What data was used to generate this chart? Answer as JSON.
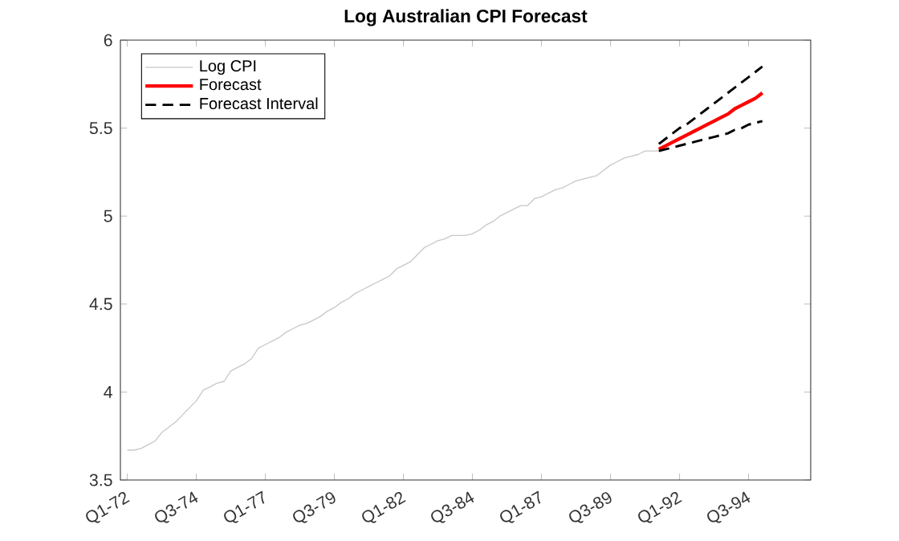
{
  "chart_data": {
    "type": "line",
    "title": "Log Australian CPI Forecast",
    "ylim": [
      3.5,
      6
    ],
    "categories": [
      "Q1-72",
      null,
      null,
      null,
      null,
      null,
      null,
      null,
      null,
      null,
      "Q3-74",
      null,
      null,
      null,
      null,
      null,
      null,
      null,
      null,
      null,
      "Q1-77",
      null,
      null,
      null,
      null,
      null,
      null,
      null,
      null,
      null,
      "Q3-79",
      null,
      null,
      null,
      null,
      null,
      null,
      null,
      null,
      null,
      "Q1-82",
      null,
      null,
      null,
      null,
      null,
      null,
      null,
      null,
      null,
      "Q3-84",
      null,
      null,
      null,
      null,
      null,
      null,
      null,
      null,
      null,
      "Q1-87",
      null,
      null,
      null,
      null,
      null,
      null,
      null,
      null,
      null,
      "Q3-89",
      null,
      null,
      null,
      null,
      null,
      null,
      null,
      null,
      null,
      "Q1-92",
      null,
      null,
      null,
      null,
      null,
      null,
      null,
      null,
      null,
      "Q3-94",
      null,
      null
    ],
    "yticks": [
      3.5,
      4,
      4.5,
      5,
      5.5,
      6
    ],
    "legend": "top left",
    "grid": false,
    "marker": "none",
    "series": [
      {
        "name": "Log CPI",
        "color": "#c8c8c8",
        "line_style": "solid",
        "values": [
          3.67,
          3.67,
          3.68,
          3.7,
          3.72,
          3.77,
          3.8,
          3.83,
          3.87,
          3.91,
          3.95,
          4.01,
          4.03,
          4.05,
          4.06,
          4.12,
          4.14,
          4.16,
          4.19,
          4.25,
          4.27,
          4.29,
          4.31,
          4.34,
          4.36,
          4.38,
          4.39,
          4.41,
          4.43,
          4.46,
          4.48,
          4.51,
          4.53,
          4.56,
          4.58,
          4.6,
          4.62,
          4.64,
          4.66,
          4.7,
          4.72,
          4.74,
          4.78,
          4.82,
          4.84,
          4.86,
          4.87,
          4.89,
          4.89,
          4.89,
          4.9,
          4.92,
          4.95,
          4.97,
          5.0,
          5.02,
          5.04,
          5.06,
          5.06,
          5.1,
          5.11,
          5.13,
          5.15,
          5.16,
          5.18,
          5.2,
          5.21,
          5.22,
          5.23,
          5.26,
          5.29,
          5.31,
          5.33,
          5.34,
          5.35,
          5.37,
          5.37,
          5.37,
          null,
          null,
          null,
          null,
          null,
          null,
          null,
          null,
          null,
          null,
          null,
          null,
          null,
          null,
          null
        ]
      },
      {
        "name": "Forecast",
        "color": "#ff0000",
        "line_style": "solid",
        "values": [
          null,
          null,
          null,
          null,
          null,
          null,
          null,
          null,
          null,
          null,
          null,
          null,
          null,
          null,
          null,
          null,
          null,
          null,
          null,
          null,
          null,
          null,
          null,
          null,
          null,
          null,
          null,
          null,
          null,
          null,
          null,
          null,
          null,
          null,
          null,
          null,
          null,
          null,
          null,
          null,
          null,
          null,
          null,
          null,
          null,
          null,
          null,
          null,
          null,
          null,
          null,
          null,
          null,
          null,
          null,
          null,
          null,
          null,
          null,
          null,
          null,
          null,
          null,
          null,
          null,
          null,
          null,
          null,
          null,
          null,
          null,
          null,
          null,
          null,
          null,
          null,
          null,
          5.38,
          5.4,
          5.42,
          5.44,
          5.46,
          5.48,
          5.5,
          5.52,
          5.54,
          5.56,
          5.58,
          5.61,
          5.63,
          5.65,
          5.67,
          5.7
        ]
      },
      {
        "name": "Forecast Interval",
        "color": "#000000",
        "line_style": "dashed",
        "values": [
          null,
          null,
          null,
          null,
          null,
          null,
          null,
          null,
          null,
          null,
          null,
          null,
          null,
          null,
          null,
          null,
          null,
          null,
          null,
          null,
          null,
          null,
          null,
          null,
          null,
          null,
          null,
          null,
          null,
          null,
          null,
          null,
          null,
          null,
          null,
          null,
          null,
          null,
          null,
          null,
          null,
          null,
          null,
          null,
          null,
          null,
          null,
          null,
          null,
          null,
          null,
          null,
          null,
          null,
          null,
          null,
          null,
          null,
          null,
          null,
          null,
          null,
          null,
          null,
          null,
          null,
          null,
          null,
          null,
          null,
          null,
          null,
          null,
          null,
          null,
          null,
          null,
          5.41,
          5.44,
          5.47,
          5.5,
          5.52,
          5.55,
          5.58,
          5.61,
          5.64,
          5.67,
          5.7,
          5.73,
          5.76,
          5.79,
          5.82,
          5.85
        ]
      },
      {
        "color": "#000000",
        "line_style": "dashed",
        "values": [
          null,
          null,
          null,
          null,
          null,
          null,
          null,
          null,
          null,
          null,
          null,
          null,
          null,
          null,
          null,
          null,
          null,
          null,
          null,
          null,
          null,
          null,
          null,
          null,
          null,
          null,
          null,
          null,
          null,
          null,
          null,
          null,
          null,
          null,
          null,
          null,
          null,
          null,
          null,
          null,
          null,
          null,
          null,
          null,
          null,
          null,
          null,
          null,
          null,
          null,
          null,
          null,
          null,
          null,
          null,
          null,
          null,
          null,
          null,
          null,
          null,
          null,
          null,
          null,
          null,
          null,
          null,
          null,
          null,
          null,
          null,
          null,
          null,
          null,
          null,
          null,
          null,
          5.37,
          5.38,
          5.39,
          5.4,
          5.41,
          5.42,
          5.43,
          5.44,
          5.45,
          5.46,
          5.47,
          5.49,
          5.5,
          5.52,
          5.53,
          5.54
        ]
      }
    ]
  }
}
